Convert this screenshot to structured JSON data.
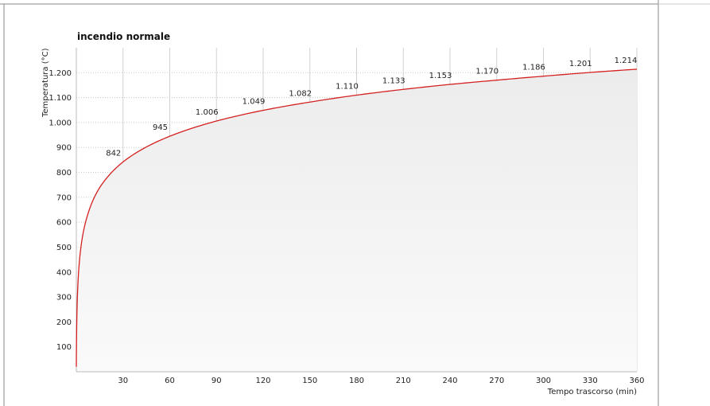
{
  "chart_data": {
    "type": "line",
    "title": "incendio normale",
    "xlabel": "Tempo trascorso (min)",
    "ylabel": "Temperatura (°C)",
    "xlim": [
      0,
      360
    ],
    "ylim": [
      0,
      1300
    ],
    "x_ticks": [
      30,
      60,
      90,
      120,
      150,
      180,
      210,
      240,
      270,
      300,
      330,
      360
    ],
    "y_ticks": [
      100,
      200,
      300,
      400,
      500,
      600,
      700,
      800,
      900,
      1000,
      1100,
      1200
    ],
    "y_tick_labels": [
      "100",
      "200",
      "300",
      "400",
      "500",
      "600",
      "700",
      "800",
      "900",
      "1.000",
      "1.100",
      "1.200"
    ],
    "grid": true,
    "area_fill": true,
    "series": [
      {
        "color": "#d42020",
        "x": [
          0,
          0.5,
          1,
          2,
          3,
          5,
          7,
          10,
          15,
          20,
          30,
          45,
          60,
          90,
          120,
          150,
          180,
          210,
          240,
          270,
          300,
          330,
          360
        ],
        "values": [
          20,
          261,
          349,
          445,
          502,
          576,
          624,
          678,
          739,
          781,
          842,
          902,
          945,
          1006,
          1049,
          1082,
          1110,
          1133,
          1153,
          1170,
          1186,
          1201,
          1214
        ]
      }
    ],
    "data_labels": [
      {
        "x": 30,
        "y": 842,
        "label": "842"
      },
      {
        "x": 60,
        "y": 945,
        "label": "945"
      },
      {
        "x": 90,
        "y": 1006,
        "label": "1.006"
      },
      {
        "x": 120,
        "y": 1049,
        "label": "1.049"
      },
      {
        "x": 150,
        "y": 1082,
        "label": "1.082"
      },
      {
        "x": 180,
        "y": 1110,
        "label": "1.110"
      },
      {
        "x": 210,
        "y": 1133,
        "label": "1.133"
      },
      {
        "x": 240,
        "y": 1153,
        "label": "1.153"
      },
      {
        "x": 270,
        "y": 1170,
        "label": "1.170"
      },
      {
        "x": 300,
        "y": 1186,
        "label": "1.186"
      },
      {
        "x": 330,
        "y": 1201,
        "label": "1.201"
      },
      {
        "x": 360,
        "y": 1214,
        "label": "1.214"
      }
    ]
  }
}
